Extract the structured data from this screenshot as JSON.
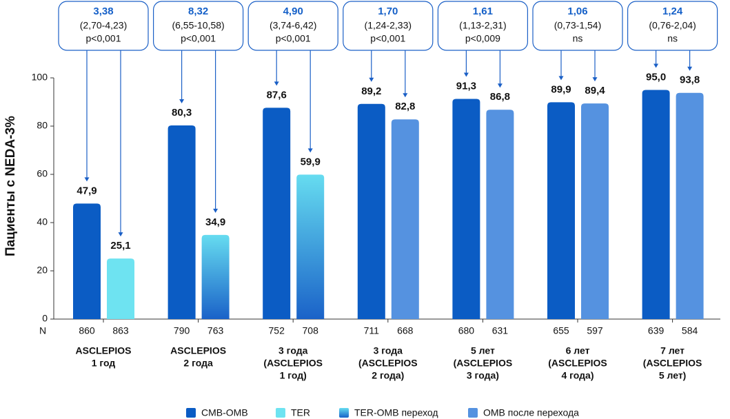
{
  "chart_data": {
    "type": "bar",
    "y_label": "Пациенты с NEDA-3%",
    "n_label": "N",
    "categories": [
      [
        "ASCLEPIOS",
        "1 год"
      ],
      [
        "ASCLEPIOS",
        "2 года"
      ],
      [
        "3 года",
        "(ASCLEPIOS",
        "1 год)"
      ],
      [
        "3 года",
        "(ASCLEPIOS",
        "2 года)"
      ],
      [
        "5 лет",
        "(ASCLEPIOS",
        "3 года)"
      ],
      [
        "6 лет",
        "(ASCLEPIOS",
        "4 года)"
      ],
      [
        "7 лет",
        "(ASCLEPIOS",
        "5 лет)"
      ]
    ],
    "series": [
      {
        "name": "CMB-OMB",
        "color": "#0b5cc4",
        "slot": 0,
        "values": [
          47.9,
          80.3,
          87.6,
          89.2,
          91.3,
          89.9,
          95.0
        ],
        "value_labels": [
          "47,9",
          "80,3",
          "87,6",
          "89,2",
          "91,3",
          "89,9",
          "95,0"
        ],
        "n": [
          860,
          790,
          752,
          711,
          680,
          655,
          639
        ]
      },
      {
        "name": "TER",
        "color": "#6ee3f1",
        "slot": 1,
        "values": [
          25.1,
          null,
          null,
          null,
          null,
          null,
          null
        ],
        "value_labels": [
          "25,1",
          null,
          null,
          null,
          null,
          null,
          null
        ],
        "n": [
          863,
          null,
          null,
          null,
          null,
          null,
          null
        ]
      },
      {
        "name": "TER-OMB переход",
        "color": [
          "#66dcf0",
          "#1a62c8"
        ],
        "slot": 1,
        "values": [
          null,
          34.9,
          59.9,
          null,
          null,
          null,
          null
        ],
        "value_labels": [
          null,
          "34,9",
          "59,9",
          null,
          null,
          null,
          null
        ],
        "n": [
          null,
          763,
          708,
          null,
          null,
          null,
          null
        ]
      },
      {
        "name": "OMB после перехода",
        "color": "#5592e0",
        "slot": 1,
        "values": [
          null,
          null,
          null,
          82.8,
          86.8,
          89.4,
          93.8
        ],
        "value_labels": [
          null,
          null,
          null,
          "82,8",
          "86,8",
          "89,4",
          "93,8"
        ],
        "n": [
          null,
          null,
          null,
          668,
          631,
          597,
          584
        ]
      }
    ],
    "annotations": [
      {
        "hr": "3,38",
        "ci": "(2,70-4,23)",
        "p": "p<0,001"
      },
      {
        "hr": "8,32",
        "ci": "(6,55-10,58)",
        "p": "p<0,001"
      },
      {
        "hr": "4,90",
        "ci": "(3,74-6,42)",
        "p": "p<0,001"
      },
      {
        "hr": "1,70",
        "ci": "(1,24-2,33)",
        "p": "p<0,001"
      },
      {
        "hr": "1,61",
        "ci": "(1,13-2,31)",
        "p": "p<0,009"
      },
      {
        "hr": "1,06",
        "ci": "(0,73-1,54)",
        "p": "ns"
      },
      {
        "hr": "1,24",
        "ci": "(0,76-2,04)",
        "p": "ns"
      }
    ],
    "ylim": [
      0,
      100
    ],
    "yticks": [
      0,
      20,
      40,
      60,
      80,
      100
    ],
    "grid": false,
    "legend": "bottom"
  }
}
